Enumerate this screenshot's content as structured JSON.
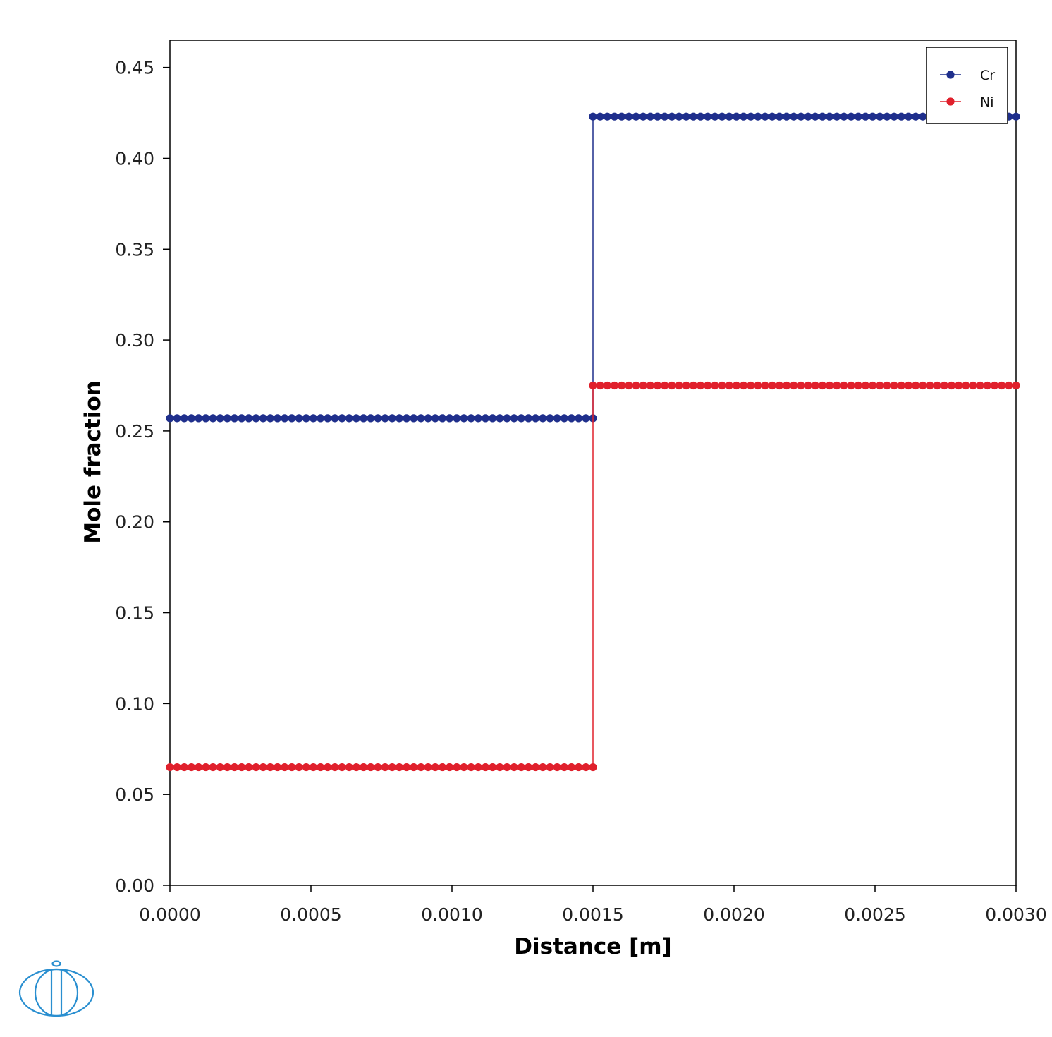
{
  "chart_data": {
    "type": "line",
    "xlabel": "Distance [m]",
    "ylabel": "Mole fraction",
    "xlim": [
      0,
      0.003
    ],
    "ylim": [
      0,
      0.465
    ],
    "xticks": [
      0,
      0.0005,
      0.001,
      0.0015,
      0.002,
      0.0025,
      0.003
    ],
    "xtick_labels": [
      "0.0000",
      "0.0005",
      "0.0010",
      "0.0015",
      "0.0020",
      "0.0025",
      "0.0030"
    ],
    "yticks": [
      0,
      0.05,
      0.1,
      0.15,
      0.2,
      0.25,
      0.3,
      0.35,
      0.4,
      0.45
    ],
    "ytick_labels": [
      "0.00",
      "0.05",
      "0.10",
      "0.15",
      "0.20",
      "0.25",
      "0.30",
      "0.35",
      "0.40",
      "0.45"
    ],
    "grid": false,
    "legend_position": "top-right",
    "series": [
      {
        "name": "Cr",
        "color": "#1f2f8c",
        "segments": [
          {
            "x_start": 0,
            "x_end": 0.0015,
            "value": 0.257,
            "points": 60
          },
          {
            "x_start": 0.0015,
            "x_end": 0.003,
            "value": 0.423,
            "points": 60
          }
        ]
      },
      {
        "name": "Ni",
        "color": "#e0202c",
        "segments": [
          {
            "x_start": 0,
            "x_end": 0.0015,
            "value": 0.065,
            "points": 60
          },
          {
            "x_start": 0.0015,
            "x_end": 0.003,
            "value": 0.275,
            "points": 60
          }
        ]
      }
    ]
  },
  "logo": {
    "name": "thermo-calc-logo-icon",
    "color": "#2a8fd0"
  }
}
